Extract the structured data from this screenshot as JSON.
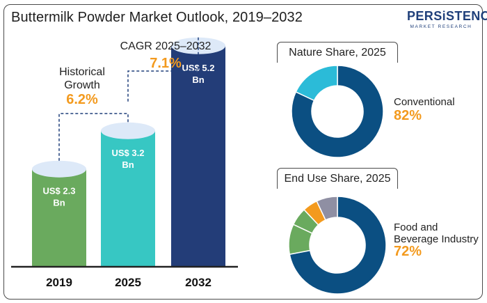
{
  "title": "Buttermilk Powder Market Outlook, 2019–2032",
  "logo": {
    "main": "PERSiSTENCE",
    "sub": "MARKET RESEARCH"
  },
  "colors": {
    "bar_2019": "#6aaa5e",
    "bar_2025": "#37c7c3",
    "bar_2032": "#233d78",
    "bar_top": "#dde9f8",
    "accent": "#f39a1e",
    "donut_main": "#0b4f82",
    "donut_secondary": "#2bbbd8",
    "donut_green": "#6aaa5e",
    "donut_orange": "#f39a1e",
    "donut_gray": "#8f8fa3"
  },
  "annotations": {
    "historical_label": "Historical\nGrowth",
    "historical_value": "6.2%",
    "cagr_label": "CAGR 2025–2032",
    "cagr_value": "7.1%"
  },
  "nature_share": {
    "title": "Nature Share, 2025",
    "label": "Conventional",
    "value": "82%"
  },
  "end_use_share": {
    "title": "End Use Share, 2025",
    "label": "Food and\nBeverage Industry",
    "value": "72%"
  },
  "chart_data": [
    {
      "type": "bar",
      "title": "Buttermilk Powder Market Outlook, 2019–2032",
      "categories": [
        "2019",
        "2025",
        "2032"
      ],
      "values": [
        2.3,
        3.2,
        5.2
      ],
      "value_labels": [
        "US$ 2.3\nBn",
        "US$ 3.2\nBn",
        "US$ 5.2\nBn"
      ],
      "ylim": [
        0,
        6
      ]
    },
    {
      "type": "pie",
      "title": "Nature Share, 2025",
      "slices": [
        {
          "value": 82
        },
        {
          "value": 18
        }
      ]
    },
    {
      "type": "pie",
      "title": "End Use Share, 2025",
      "slices": [
        {
          "value": 72
        },
        {
          "value": 10
        },
        {
          "value": 6
        },
        {
          "value": 5
        },
        {
          "value": 7
        }
      ]
    }
  ]
}
